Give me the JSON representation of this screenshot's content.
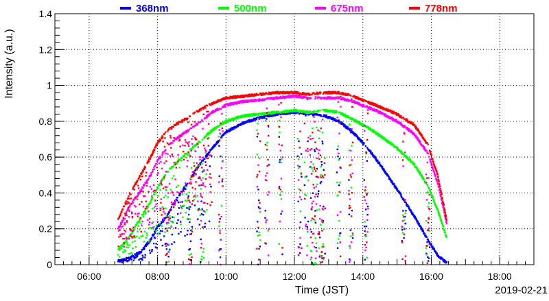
{
  "chart_data": {
    "type": "scatter",
    "title": "",
    "xlabel": "Time (JST)",
    "ylabel": "Intensity (a.u.)",
    "date_label": "2019-02-21",
    "xlim_hours": [
      5.0,
      19.0
    ],
    "ylim": [
      0,
      1.4
    ],
    "x_ticks": [
      {
        "hour": 6,
        "label": "06:00"
      },
      {
        "hour": 8,
        "label": "08:00"
      },
      {
        "hour": 10,
        "label": "10:00"
      },
      {
        "hour": 12,
        "label": "12:00"
      },
      {
        "hour": 14,
        "label": "14:00"
      },
      {
        "hour": 16,
        "label": "16:00"
      },
      {
        "hour": 18,
        "label": "18:00"
      }
    ],
    "y_ticks": [
      {
        "value": 0,
        "label": "0"
      },
      {
        "value": 0.2,
        "label": "0.2"
      },
      {
        "value": 0.4,
        "label": "0.4"
      },
      {
        "value": 0.6,
        "label": "0.6"
      },
      {
        "value": 0.8,
        "label": "0.8"
      },
      {
        "value": 1.0,
        "label": "1"
      },
      {
        "value": 1.2,
        "label": "1.2"
      },
      {
        "value": 1.4,
        "label": "1.4"
      }
    ],
    "grid": true,
    "legend_position": "top",
    "dip_times": [
      8.3,
      8.95,
      9.3,
      9.85,
      10.95,
      11.2,
      11.6,
      12.15,
      12.35,
      12.85,
      13.3,
      13.65,
      14.1,
      15.2,
      15.9
    ],
    "series": [
      {
        "name": "368nm",
        "color": "#0000ff",
        "envelope": [
          [
            6.85,
            0.02
          ],
          [
            7.2,
            0.04
          ],
          [
            7.5,
            0.07
          ],
          [
            7.8,
            0.14
          ],
          [
            8.0,
            0.21
          ],
          [
            8.3,
            0.28
          ],
          [
            8.6,
            0.38
          ],
          [
            8.9,
            0.46
          ],
          [
            9.2,
            0.55
          ],
          [
            9.6,
            0.65
          ],
          [
            10.0,
            0.74
          ],
          [
            10.5,
            0.79
          ],
          [
            11.0,
            0.82
          ],
          [
            11.5,
            0.84
          ],
          [
            12.0,
            0.85
          ],
          [
            12.4,
            0.84
          ],
          [
            12.9,
            0.83
          ],
          [
            13.3,
            0.8
          ],
          [
            13.7,
            0.74
          ],
          [
            14.1,
            0.66
          ],
          [
            14.5,
            0.56
          ],
          [
            15.0,
            0.42
          ],
          [
            15.5,
            0.27
          ],
          [
            15.9,
            0.14
          ],
          [
            16.2,
            0.05
          ],
          [
            16.45,
            0.01
          ]
        ]
      },
      {
        "name": "500nm",
        "color": "#00ff00",
        "envelope": [
          [
            6.85,
            0.08
          ],
          [
            7.2,
            0.16
          ],
          [
            7.5,
            0.26
          ],
          [
            7.8,
            0.35
          ],
          [
            8.0,
            0.43
          ],
          [
            8.3,
            0.52
          ],
          [
            8.6,
            0.58
          ],
          [
            8.9,
            0.63
          ],
          [
            9.2,
            0.68
          ],
          [
            9.6,
            0.75
          ],
          [
            10.0,
            0.8
          ],
          [
            10.5,
            0.83
          ],
          [
            11.0,
            0.84
          ],
          [
            11.5,
            0.85
          ],
          [
            12.0,
            0.86
          ],
          [
            12.4,
            0.85
          ],
          [
            12.9,
            0.86
          ],
          [
            13.3,
            0.85
          ],
          [
            13.7,
            0.81
          ],
          [
            14.1,
            0.77
          ],
          [
            14.5,
            0.72
          ],
          [
            15.0,
            0.65
          ],
          [
            15.5,
            0.56
          ],
          [
            15.9,
            0.44
          ],
          [
            16.2,
            0.3
          ],
          [
            16.45,
            0.15
          ]
        ]
      },
      {
        "name": "675nm",
        "color": "#ff00ff",
        "envelope": [
          [
            6.85,
            0.2
          ],
          [
            7.2,
            0.33
          ],
          [
            7.5,
            0.41
          ],
          [
            7.8,
            0.5
          ],
          [
            8.0,
            0.58
          ],
          [
            8.3,
            0.66
          ],
          [
            8.6,
            0.71
          ],
          [
            8.9,
            0.75
          ],
          [
            9.2,
            0.79
          ],
          [
            9.6,
            0.85
          ],
          [
            10.0,
            0.89
          ],
          [
            10.5,
            0.91
          ],
          [
            11.0,
            0.92
          ],
          [
            11.5,
            0.93
          ],
          [
            12.0,
            0.94
          ],
          [
            12.4,
            0.93
          ],
          [
            12.9,
            0.93
          ],
          [
            13.3,
            0.93
          ],
          [
            13.7,
            0.91
          ],
          [
            14.1,
            0.88
          ],
          [
            14.5,
            0.85
          ],
          [
            15.0,
            0.8
          ],
          [
            15.5,
            0.73
          ],
          [
            15.9,
            0.62
          ],
          [
            16.2,
            0.45
          ],
          [
            16.45,
            0.23
          ]
        ]
      },
      {
        "name": "778nm",
        "color": "#ff0000",
        "envelope": [
          [
            6.85,
            0.25
          ],
          [
            7.2,
            0.4
          ],
          [
            7.5,
            0.5
          ],
          [
            7.8,
            0.6
          ],
          [
            8.0,
            0.68
          ],
          [
            8.3,
            0.75
          ],
          [
            8.6,
            0.79
          ],
          [
            8.9,
            0.82
          ],
          [
            9.2,
            0.86
          ],
          [
            9.6,
            0.9
          ],
          [
            10.0,
            0.93
          ],
          [
            10.5,
            0.94
          ],
          [
            11.0,
            0.95
          ],
          [
            11.5,
            0.96
          ],
          [
            12.0,
            0.96
          ],
          [
            12.4,
            0.95
          ],
          [
            12.9,
            0.96
          ],
          [
            13.3,
            0.96
          ],
          [
            13.7,
            0.94
          ],
          [
            14.1,
            0.91
          ],
          [
            14.5,
            0.88
          ],
          [
            15.0,
            0.84
          ],
          [
            15.5,
            0.78
          ],
          [
            15.9,
            0.67
          ],
          [
            16.2,
            0.49
          ],
          [
            16.45,
            0.25
          ]
        ]
      }
    ]
  }
}
